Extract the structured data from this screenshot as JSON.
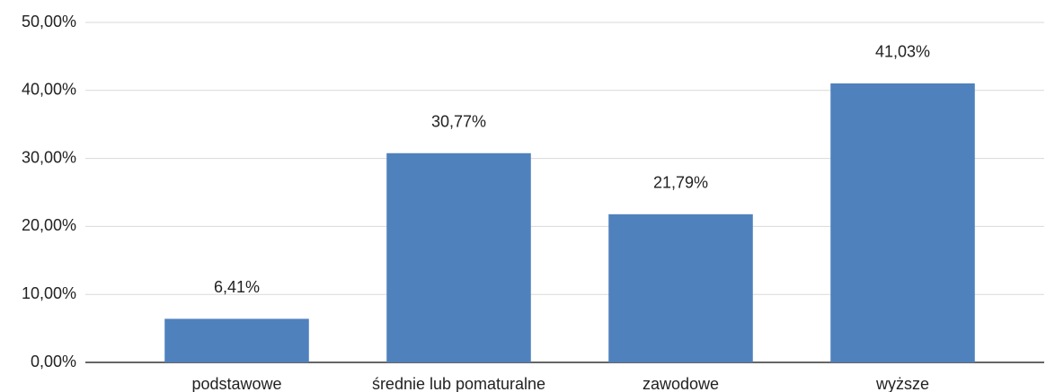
{
  "chart_data": {
    "type": "bar",
    "categories": [
      "podstawowe",
      "średnie lub pomaturalne",
      "zawodowe",
      "wyższe"
    ],
    "values": [
      6.41,
      30.77,
      21.79,
      41.03
    ],
    "value_labels": [
      "6,41%",
      "30,77%",
      "21,79%",
      "41,03%"
    ],
    "color": "#4f81bd",
    "ylim": [
      0,
      50
    ],
    "yticks": [
      {
        "value": 0,
        "label": "0,00%"
      },
      {
        "value": 10,
        "label": "10,00%"
      },
      {
        "value": 20,
        "label": "20,00%"
      },
      {
        "value": 30,
        "label": "30,00%"
      },
      {
        "value": 40,
        "label": "40,00%"
      },
      {
        "value": 50,
        "label": "50,00%"
      }
    ],
    "grid": true
  }
}
